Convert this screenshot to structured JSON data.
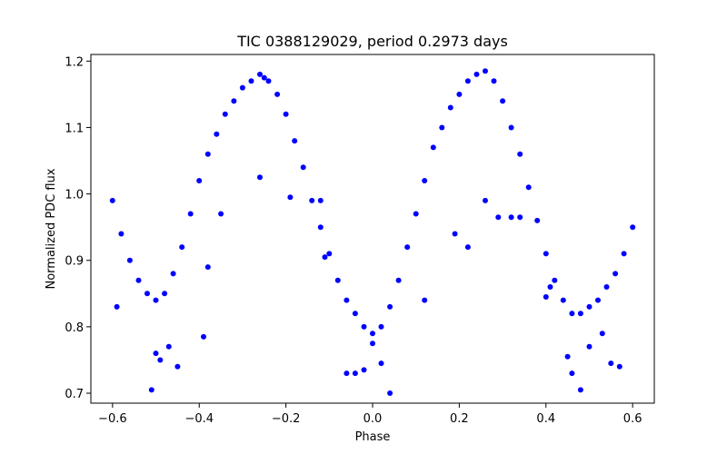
{
  "chart_data": {
    "type": "scatter",
    "title": "TIC 0388129029, period 0.2973 days",
    "xlabel": "Phase",
    "ylabel": "Normalized PDC flux",
    "xlim": [
      -0.65,
      0.65
    ],
    "ylim": [
      0.685,
      1.21
    ],
    "x_ticks": [
      -0.6,
      -0.4,
      -0.2,
      0.0,
      0.2,
      0.4,
      0.6
    ],
    "x_tick_labels": [
      "−0.6",
      "−0.4",
      "−0.2",
      "0.0",
      "0.2",
      "0.4",
      "0.6"
    ],
    "y_ticks": [
      0.7,
      0.8,
      0.9,
      1.0,
      1.1,
      1.2
    ],
    "y_tick_labels": [
      "0.7",
      "0.8",
      "0.9",
      "1.0",
      "1.1",
      "1.2"
    ],
    "grid": false,
    "marker_color": "#0000ff",
    "series": [
      {
        "x": [
          -0.6,
          -0.58,
          -0.56,
          -0.54,
          -0.52,
          -0.5,
          -0.48,
          -0.46,
          -0.44,
          -0.42,
          -0.4,
          -0.38,
          -0.36,
          -0.34,
          -0.32,
          -0.3,
          -0.28,
          -0.26,
          -0.25,
          -0.24,
          -0.22,
          -0.2,
          -0.18,
          -0.16,
          -0.14,
          -0.12,
          -0.1,
          -0.08,
          -0.06,
          -0.04,
          -0.02,
          0.0,
          0.02,
          0.04,
          0.06,
          0.08,
          0.1,
          0.12,
          0.14,
          0.16,
          0.18,
          0.2,
          0.22,
          0.24,
          0.26,
          0.28,
          0.3,
          0.32,
          0.34,
          0.36,
          0.38,
          0.4,
          0.42,
          0.44,
          0.46,
          0.48,
          0.5,
          0.52,
          0.54,
          0.56,
          0.58,
          0.6,
          -0.59,
          -0.51,
          -0.5,
          -0.49,
          -0.47,
          -0.45,
          -0.39,
          -0.38,
          -0.35,
          -0.26,
          -0.19,
          -0.12,
          -0.11,
          -0.06,
          -0.04,
          -0.02,
          0.0,
          0.02,
          0.04,
          0.12,
          0.19,
          0.22,
          0.26,
          0.29,
          0.32,
          0.34,
          0.4,
          0.41,
          0.45,
          0.46,
          0.48,
          0.5,
          0.53,
          0.55,
          0.57
        ],
        "y": [
          0.99,
          0.94,
          0.9,
          0.87,
          0.85,
          0.84,
          0.85,
          0.88,
          0.92,
          0.97,
          1.02,
          1.06,
          1.09,
          1.12,
          1.14,
          1.16,
          1.17,
          1.18,
          1.175,
          1.17,
          1.15,
          1.12,
          1.08,
          1.04,
          0.99,
          0.95,
          0.91,
          0.87,
          0.84,
          0.82,
          0.8,
          0.79,
          0.8,
          0.83,
          0.87,
          0.92,
          0.97,
          1.02,
          1.07,
          1.1,
          1.13,
          1.15,
          1.17,
          1.18,
          1.185,
          1.17,
          1.14,
          1.1,
          1.06,
          1.01,
          0.96,
          0.91,
          0.87,
          0.84,
          0.82,
          0.82,
          0.83,
          0.84,
          0.86,
          0.88,
          0.91,
          0.95,
          0.83,
          0.705,
          0.76,
          0.75,
          0.77,
          0.74,
          0.785,
          0.89,
          0.97,
          1.025,
          0.995,
          0.99,
          0.905,
          0.73,
          0.73,
          0.735,
          0.775,
          0.745,
          0.7,
          0.84,
          0.94,
          0.92,
          0.99,
          0.965,
          0.965,
          0.965,
          0.845,
          0.86,
          0.755,
          0.73,
          0.705,
          0.77,
          0.79,
          0.745,
          0.74
        ]
      }
    ]
  }
}
